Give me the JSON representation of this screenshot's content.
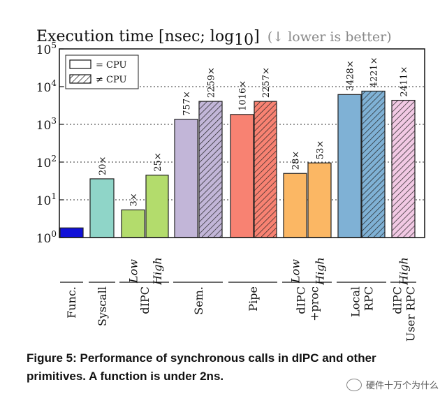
{
  "chart_data": {
    "type": "bar",
    "title": "Execution time [nsec; log",
    "title_sub": "10",
    "title_close": "]",
    "title_hint": "(↓ lower is better)",
    "yscale": "log",
    "ylim": [
      1,
      100000
    ],
    "ytick_bases": [
      "10",
      "10",
      "10",
      "10",
      "10",
      "10"
    ],
    "ytick_exps": [
      "0",
      "1",
      "2",
      "3",
      "4",
      "5"
    ],
    "legend": {
      "placement": "top-left",
      "entries": [
        {
          "name": "= CPU",
          "style": "solid"
        },
        {
          "name": "≠ CPU",
          "style": "hatched"
        }
      ]
    },
    "bars": [
      {
        "group": "Func.",
        "variant": "",
        "value": 1.8,
        "label": "",
        "color": "#1010d8",
        "hatch": false
      },
      {
        "group": "Syscall",
        "variant": "",
        "value": 36,
        "label": "20×",
        "color": "#8fd5c8",
        "hatch": false
      },
      {
        "group": "dIPC",
        "variant": "Low",
        "value": 5.4,
        "label": "3×",
        "color": "#b3dc6c",
        "hatch": false
      },
      {
        "group": "dIPC",
        "variant": "High",
        "value": 45,
        "label": "25×",
        "color": "#b3dc6c",
        "hatch": false
      },
      {
        "group": "Sem.",
        "variant": "",
        "value": 1362,
        "label": "757×",
        "color": "#c2b6d8",
        "hatch": false
      },
      {
        "group": "Sem.",
        "variant": "",
        "value": 4066,
        "label": "2259×",
        "color": "#c2b6d8",
        "hatch": true
      },
      {
        "group": "Pipe",
        "variant": "",
        "value": 1829,
        "label": "1016×",
        "color": "#f88272",
        "hatch": false
      },
      {
        "group": "Pipe",
        "variant": "",
        "value": 4063,
        "label": "2257×",
        "color": "#f88272",
        "hatch": true
      },
      {
        "group": "dIPC +proc",
        "variant": "Low",
        "value": 50,
        "label": "28×",
        "color": "#fbb764",
        "hatch": false
      },
      {
        "group": "dIPC +proc",
        "variant": "High",
        "value": 95,
        "label": "53×",
        "color": "#fbb764",
        "hatch": false
      },
      {
        "group": "Local RPC",
        "variant": "",
        "value": 6170,
        "label": "3428×",
        "color": "#7fb1d5",
        "hatch": false
      },
      {
        "group": "Local RPC",
        "variant": "",
        "value": 7598,
        "label": "4221×",
        "color": "#7fb1d5",
        "hatch": true
      },
      {
        "group": "dIPC User RPC",
        "variant": "High",
        "value": 4340,
        "label": "2411×",
        "color": "#f2c9e4",
        "hatch": true
      }
    ],
    "groups": [
      {
        "lines": [
          "Func."
        ]
      },
      {
        "lines": [
          "Syscall"
        ]
      },
      {
        "lines": [
          "dIPC"
        ]
      },
      {
        "lines": [
          "Sem."
        ]
      },
      {
        "lines": [
          "Pipe"
        ]
      },
      {
        "lines": [
          "dIPC",
          "+proc"
        ]
      },
      {
        "lines": [
          "Local",
          "RPC"
        ]
      },
      {
        "lines": [
          "dIPC",
          "User RPC"
        ]
      }
    ]
  },
  "caption": "Figure 5: Performance of synchronous calls in dIPC and other primitives. A function is under 2ns.",
  "watermark": "硬件十万个为什么"
}
